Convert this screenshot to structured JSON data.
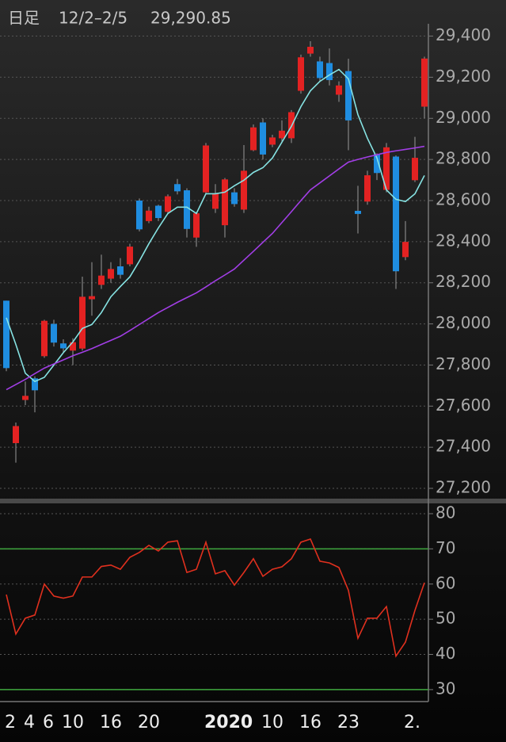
{
  "chart_data": [
    {
      "type": "candlestick",
      "title": "日足",
      "subtitle": "12/2–2/5",
      "last_price": "29,290.85",
      "up_color": "#e32222",
      "down_color": "#1f8de0",
      "open": [
        28113,
        27420,
        27630,
        27735,
        27843,
        28000,
        27905,
        27870,
        27880,
        28120,
        28190,
        28220,
        28280,
        28290,
        28600,
        28500,
        28575,
        28545,
        28680,
        28650,
        28420,
        28640,
        28560,
        28480,
        28640,
        28556,
        28845,
        28980,
        28872,
        28903,
        28903,
        29134,
        29315,
        29277,
        29269,
        29115,
        29230,
        28550,
        28595,
        28826,
        28652,
        28814,
        28325,
        28699,
        29057
      ],
      "high": [
        28113,
        27520,
        27720,
        27745,
        28020,
        28020,
        27925,
        27930,
        28230,
        28300,
        28337,
        28300,
        28320,
        28390,
        28610,
        28570,
        28580,
        28630,
        28705,
        28660,
        28545,
        28880,
        28680,
        28710,
        28660,
        28870,
        28970,
        29000,
        28920,
        28990,
        29040,
        29310,
        29375,
        29300,
        29340,
        29180,
        29290,
        28672,
        28745,
        28830,
        28880,
        28820,
        28500,
        28910,
        29300
      ],
      "low": [
        27770,
        27325,
        27605,
        27570,
        27835,
        27890,
        27860,
        27800,
        27870,
        28040,
        28170,
        28200,
        28220,
        28280,
        28450,
        28490,
        28500,
        28540,
        28630,
        28420,
        28375,
        28630,
        28540,
        28420,
        28570,
        28540,
        28840,
        28800,
        28860,
        28880,
        28880,
        29120,
        29300,
        29180,
        29160,
        29080,
        28845,
        28440,
        28580,
        28700,
        28640,
        28170,
        28310,
        28690,
        29000
      ],
      "close": [
        27785,
        27503,
        27650,
        27677,
        28015,
        27909,
        27881,
        27911,
        28132,
        28135,
        28235,
        28267,
        28239,
        28376,
        28460,
        28551,
        28515,
        28621,
        28645,
        28462,
        28538,
        28868,
        28634,
        28703,
        28583,
        28745,
        28956,
        28824,
        28907,
        28940,
        29030,
        29297,
        29348,
        29196,
        29186,
        29160,
        28990,
        28535,
        28723,
        28734,
        28859,
        28256,
        28399,
        28808,
        29290.85
      ],
      "series": [
        {
          "color": "#86e3e3",
          "values": [
            28030,
            27900,
            27760,
            27720,
            27740,
            27800,
            27860,
            27912,
            27978,
            27997,
            28055,
            28132,
            28182,
            28229,
            28306,
            28390,
            28467,
            28537,
            28568,
            28568,
            28537,
            28633,
            28633,
            28641,
            28672,
            28699,
            28737,
            28760,
            28807,
            28884,
            28961,
            29057,
            29134,
            29180,
            29211,
            29238,
            29192,
            29018,
            28903,
            28807,
            28652,
            28606,
            28595,
            28633,
            28722
          ]
        },
        {
          "color": "#a23ee6",
          "values": [
            27680,
            27705,
            27730,
            27758,
            27785,
            27805,
            27825,
            27845,
            27862,
            27880,
            27900,
            27920,
            27940,
            27968,
            27997,
            28026,
            28055,
            28080,
            28105,
            28128,
            28151,
            28180,
            28210,
            28238,
            28267,
            28310,
            28353,
            28397,
            28440,
            28493,
            28546,
            28600,
            28652,
            28686,
            28720,
            28754,
            28787,
            28800,
            28812,
            28823,
            28834,
            28842,
            28849,
            28856,
            28864
          ]
        }
      ],
      "ylim": [
        27150,
        29460
      ],
      "yticks": [
        {
          "value": 27200,
          "label": "27,200"
        },
        {
          "value": 27400,
          "label": "27,400"
        },
        {
          "value": 27600,
          "label": "27,600"
        },
        {
          "value": 27800,
          "label": "27,800"
        },
        {
          "value": 28000,
          "label": "28,000"
        },
        {
          "value": 28200,
          "label": "28,200"
        },
        {
          "value": 28400,
          "label": "28,400"
        },
        {
          "value": 28600,
          "label": "28,600"
        },
        {
          "value": 28800,
          "label": "28,800"
        },
        {
          "value": 29000,
          "label": "29,000"
        },
        {
          "value": 29200,
          "label": "29,200"
        },
        {
          "value": 29400,
          "label": "29,400"
        }
      ],
      "grid": true
    },
    {
      "type": "line",
      "categories": [
        "2",
        null,
        "4",
        null,
        "6",
        null,
        "10",
        null,
        null,
        null,
        "16",
        null,
        null,
        null,
        "20",
        null,
        null,
        null,
        null,
        null,
        null,
        "2020",
        null,
        null,
        null,
        null,
        null,
        "10",
        null,
        null,
        null,
        "16",
        null,
        null,
        null,
        "23",
        null,
        null,
        null,
        null,
        null,
        null,
        "2.",
        null,
        null
      ],
      "series": [
        {
          "color": "#e0301e",
          "values": [
            57,
            45.8,
            50.3,
            51.2,
            60,
            56.6,
            56,
            56.6,
            62,
            62,
            65,
            65.4,
            64.2,
            67.6,
            69,
            71,
            69.4,
            71.9,
            72.3,
            63.3,
            64.2,
            71.9,
            62.9,
            63.8,
            59.7,
            63.3,
            67.2,
            62.2,
            64.2,
            64.9,
            67.2,
            71.9,
            72.8,
            66.5,
            66,
            64.7,
            58.2,
            44.6,
            50.3,
            50.3,
            53.6,
            39.5,
            43.5,
            52.5,
            60.4
          ]
        }
      ],
      "reference_lines": [
        {
          "value": 70,
          "color": "#3fa83f"
        },
        {
          "value": 30,
          "color": "#3fa83f"
        }
      ],
      "ylim": [
        26.6,
        82.7
      ],
      "yticks": [
        30,
        40,
        50,
        60,
        70,
        80
      ],
      "grid": true
    }
  ]
}
